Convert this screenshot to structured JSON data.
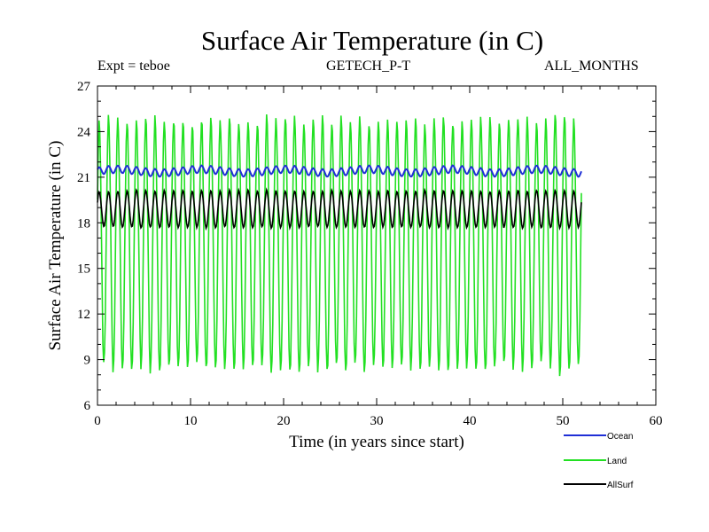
{
  "chart_data": {
    "type": "line",
    "title": "Surface Air Temperature (in C)",
    "subtitle_left": "Expt = teboe",
    "subtitle_center": "GETECH_P-T",
    "subtitle_right": "ALL_MONTHS",
    "xlabel": "Time (in years since start)",
    "ylabel": "Surface Air Temperature (in C)",
    "xlim": [
      0,
      60
    ],
    "ylim": [
      6,
      27
    ],
    "xticks": [
      "0",
      "10",
      "20",
      "30",
      "40",
      "50",
      "60"
    ],
    "yticks": [
      "6",
      "9",
      "12",
      "15",
      "18",
      "21",
      "24",
      "27"
    ],
    "legend_position": "bottom-right",
    "x_range_data": [
      0,
      52
    ],
    "series": [
      {
        "name": "Ocean",
        "color": "#1f2fd6",
        "cycle": "annual",
        "mean": 21.4,
        "amplitude": 0.25,
        "description_values": {
          "min": 21.0,
          "max": 21.9
        }
      },
      {
        "name": "Land",
        "color": "#22e022",
        "cycle": "annual",
        "mean": 16.6,
        "amplitude": 8.2,
        "description_values": {
          "min": 7.8,
          "max": 25.9
        }
      },
      {
        "name": "AllSurf",
        "color": "#000000",
        "cycle": "annual",
        "mean": 18.9,
        "amplitude": 1.2,
        "description_values": {
          "min": 17.4,
          "max": 20.8
        }
      }
    ]
  }
}
